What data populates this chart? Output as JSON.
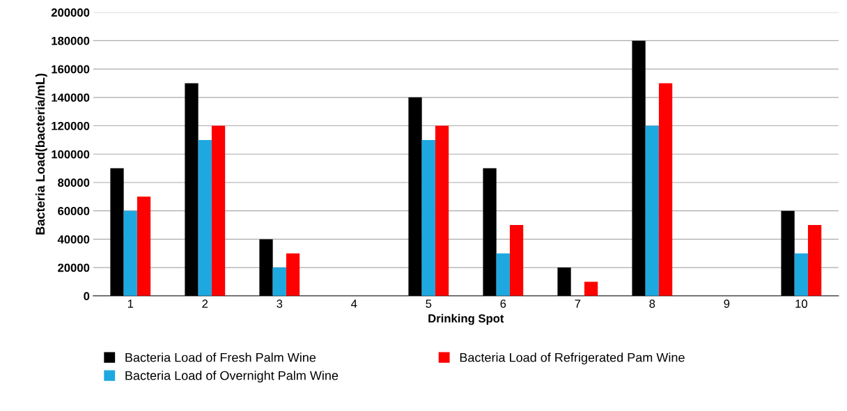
{
  "chart_data": {
    "type": "bar",
    "xlabel": "Drinking Spot",
    "ylabel": "Bacteria Load(bacteria/mL)",
    "categories": [
      "1",
      "2",
      "3",
      "4",
      "5",
      "6",
      "7",
      "8",
      "9",
      "10"
    ],
    "series": [
      {
        "name": "Bacteria Load of Fresh Palm Wine",
        "color": "#000000",
        "values": [
          90000,
          150000,
          40000,
          0,
          140000,
          90000,
          20000,
          180000,
          0,
          60000
        ]
      },
      {
        "name": "Bacteria Load of Overnight Palm Wine",
        "color": "#1ea8e0",
        "values": [
          60000,
          110000,
          20000,
          0,
          110000,
          30000,
          0,
          120000,
          0,
          30000
        ]
      },
      {
        "name": "Bacteria Load of Refrigerated Pam Wine",
        "color": "#ff0000",
        "values": [
          70000,
          120000,
          30000,
          0,
          120000,
          50000,
          10000,
          150000,
          0,
          50000
        ]
      }
    ],
    "ylim": [
      0,
      200000
    ],
    "yticks": [
      0,
      20000,
      40000,
      60000,
      80000,
      100000,
      120000,
      140000,
      160000,
      180000,
      200000
    ],
    "grid": "y",
    "legend": "bottom"
  }
}
